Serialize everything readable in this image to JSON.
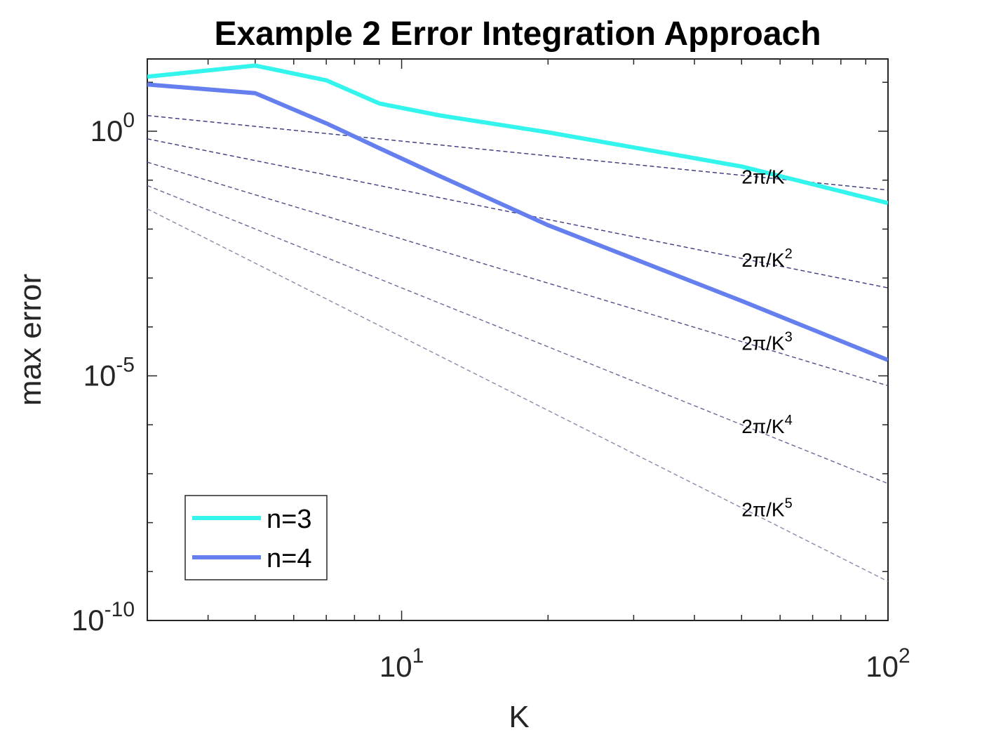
{
  "chart_data": {
    "type": "line",
    "title": "Example 2 Error Integration Approach",
    "xlabel": "K",
    "ylabel": "max error",
    "xscale": "log",
    "yscale": "log",
    "xlim": [
      3,
      100
    ],
    "ylim": [
      1e-10,
      30
    ],
    "x_ticks": [
      {
        "base": "10",
        "exp": "1",
        "value": 10
      },
      {
        "base": "10",
        "exp": "2",
        "value": 100
      }
    ],
    "y_ticks": [
      {
        "base": "10",
        "exp": "0",
        "value": 1
      },
      {
        "base": "10",
        "exp": "-5",
        "value": 1e-05
      },
      {
        "base": "10",
        "exp": "-10",
        "value": 1e-10
      }
    ],
    "series": [
      {
        "name": "n=3",
        "color": "#33f5ee",
        "x": [
          3,
          5,
          7,
          9,
          12,
          20,
          50,
          100
        ],
        "y": [
          13,
          22,
          11,
          3.7,
          2.1,
          0.95,
          0.19,
          0.034
        ]
      },
      {
        "name": "n=4",
        "color": "#6580ee",
        "x": [
          3,
          5,
          7,
          9,
          12,
          20,
          50,
          100
        ],
        "y": [
          9,
          6,
          1.45,
          0.45,
          0.12,
          0.012,
          0.00034,
          2.1e-05
        ]
      }
    ],
    "reference_lines": [
      {
        "base": "2π/K",
        "exp": "",
        "power": 1,
        "color": "#32327a"
      },
      {
        "base": "2π/K",
        "exp": "2",
        "power": 2,
        "color": "#3b3b80"
      },
      {
        "base": "2π/K",
        "exp": "3",
        "power": 3,
        "color": "#505088"
      },
      {
        "base": "2π/K",
        "exp": "4",
        "power": 4,
        "color": "#6a6a98"
      },
      {
        "base": "2π/K",
        "exp": "5",
        "power": 5,
        "color": "#8a8aaa"
      }
    ],
    "legend": {
      "position": "bottom-left",
      "entries": [
        "n=3",
        "n=4"
      ]
    },
    "grid": false
  }
}
